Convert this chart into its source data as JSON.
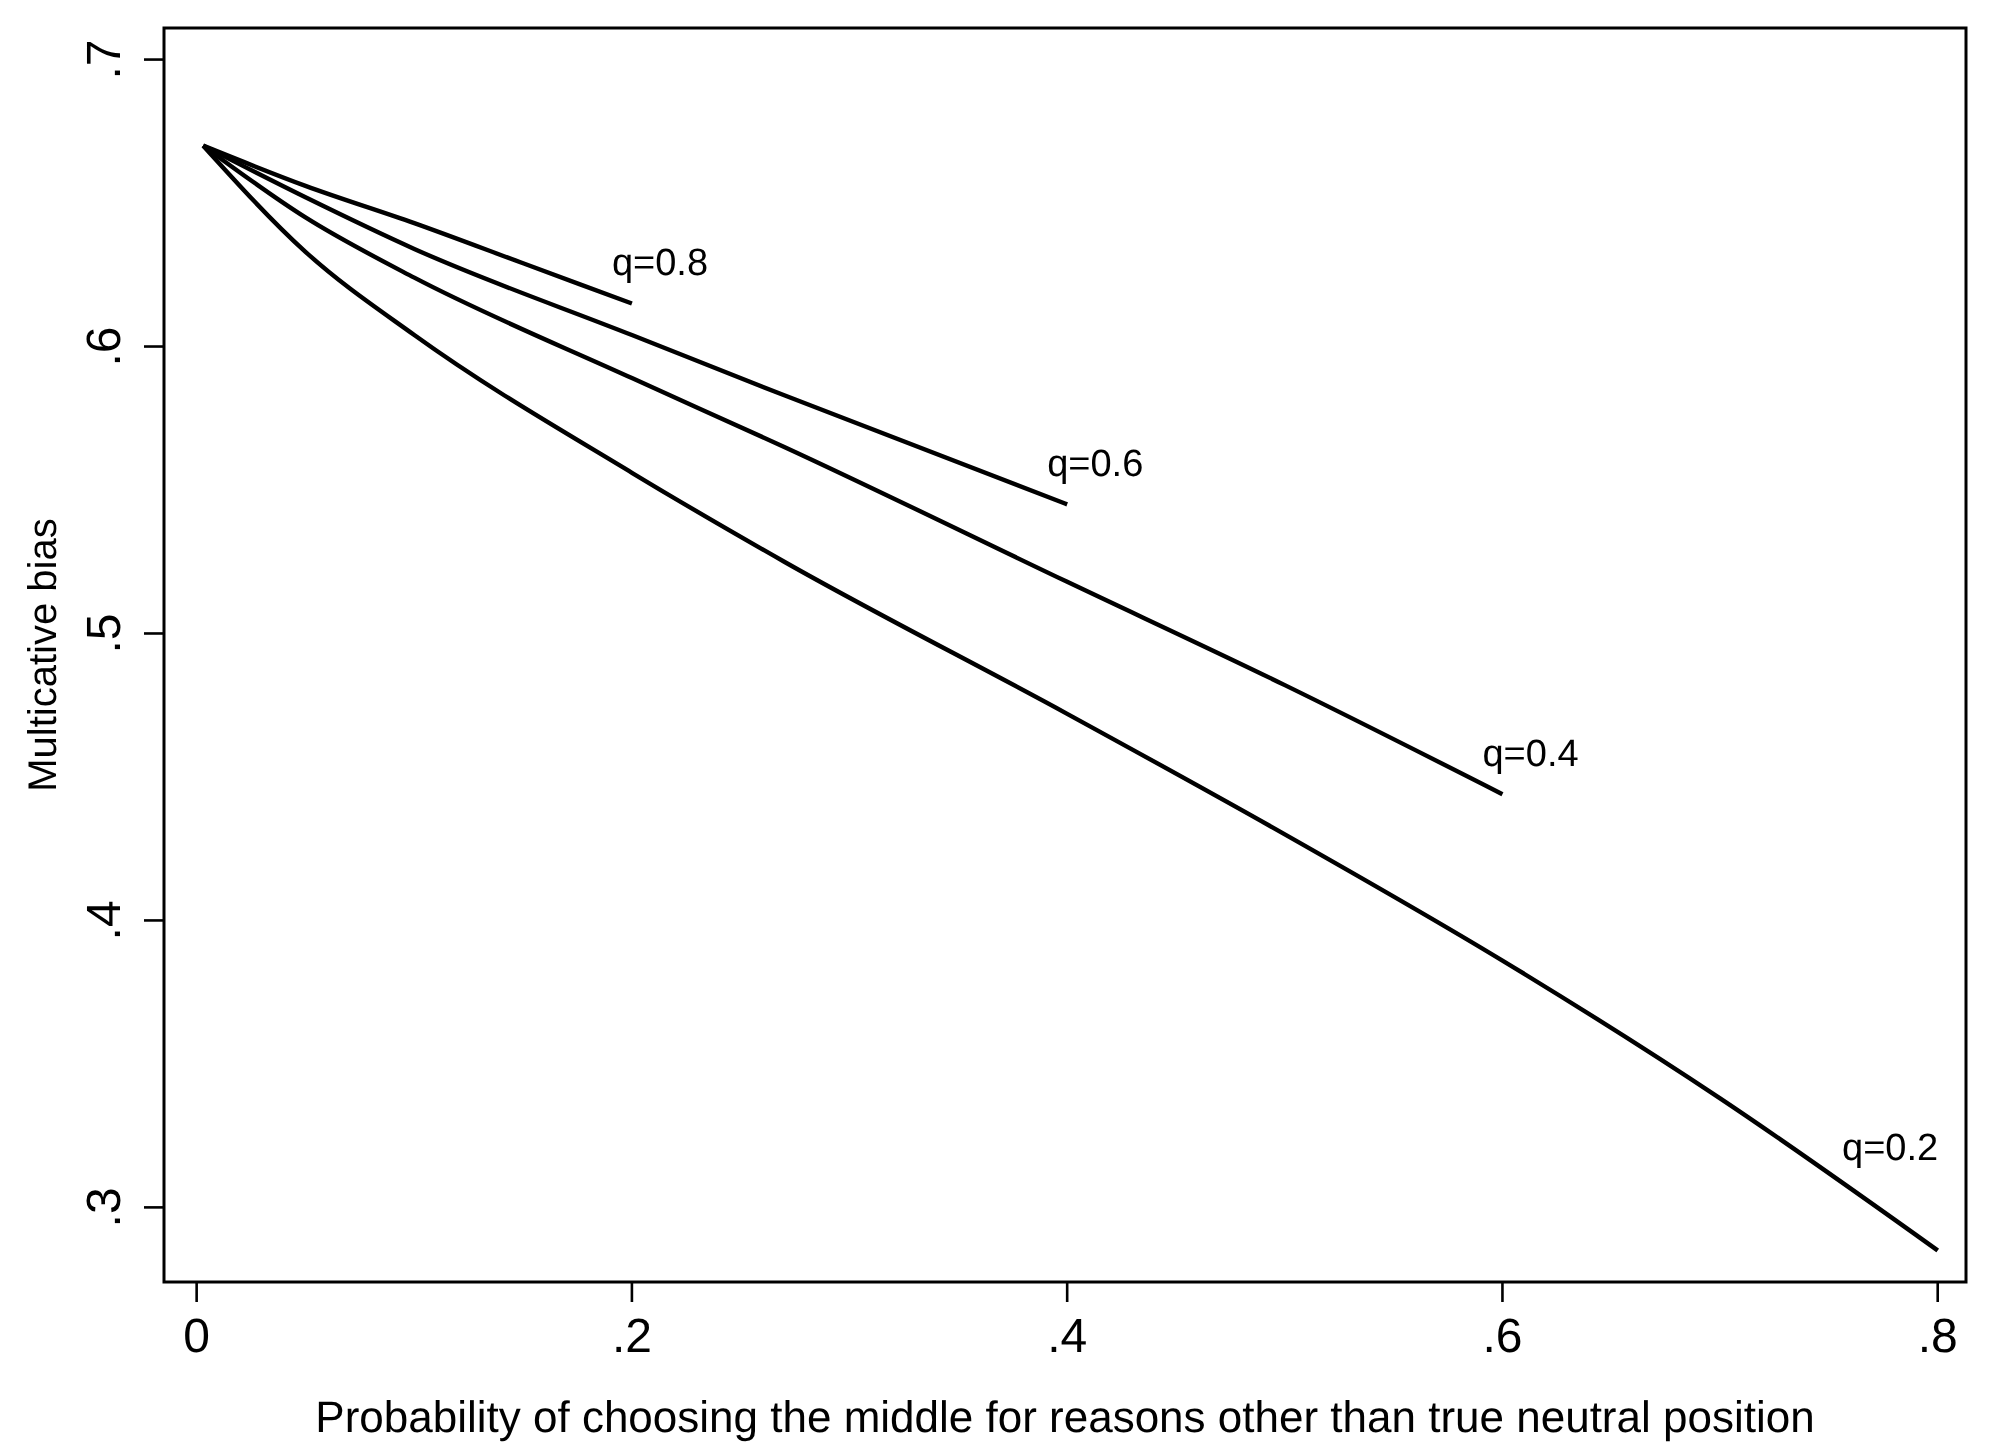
{
  "chart_data": {
    "type": "line",
    "xlabel": "Probability of choosing the middle for reasons other than true neutral position",
    "ylabel": "Multicative bias",
    "xlim": [
      -0.015,
      0.813
    ],
    "ylim": [
      0.274,
      0.711
    ],
    "xticks": [
      {
        "value": 0,
        "label": "0"
      },
      {
        "value": 0.2,
        "label": ".2"
      },
      {
        "value": 0.4,
        "label": ".4"
      },
      {
        "value": 0.6,
        "label": ".6"
      },
      {
        "value": 0.8,
        "label": ".8"
      }
    ],
    "yticks": [
      {
        "value": 0.3,
        "label": ".3"
      },
      {
        "value": 0.4,
        "label": ".4"
      },
      {
        "value": 0.5,
        "label": ".5"
      },
      {
        "value": 0.6,
        "label": ".6"
      },
      {
        "value": 0.7,
        "label": ".7"
      }
    ],
    "grid": false,
    "legend": false,
    "marker": "none",
    "line_style": "solid",
    "series": [
      {
        "name": "q=0.8",
        "color": "#000000",
        "x": [
          0.003,
          0.05,
          0.1,
          0.15,
          0.2
        ],
        "values": [
          0.67,
          0.656,
          0.643,
          0.629,
          0.615
        ]
      },
      {
        "name": "q=0.6",
        "color": "#000000",
        "x": [
          0.003,
          0.05,
          0.1,
          0.2,
          0.27,
          0.4
        ],
        "values": [
          0.67,
          0.652,
          0.634,
          0.604,
          0.583,
          0.545
        ]
      },
      {
        "name": "q=0.4",
        "color": "#000000",
        "x": [
          0.003,
          0.05,
          0.1,
          0.2,
          0.27,
          0.4,
          0.5,
          0.6
        ],
        "values": [
          0.67,
          0.645,
          0.624,
          0.589,
          0.565,
          0.518,
          0.482,
          0.444
        ]
      },
      {
        "name": "q=0.2",
        "color": "#000000",
        "x": [
          0.003,
          0.05,
          0.1,
          0.2,
          0.27,
          0.4,
          0.5,
          0.6,
          0.7,
          0.8
        ],
        "values": [
          0.67,
          0.633,
          0.604,
          0.556,
          0.525,
          0.472,
          0.43,
          0.386,
          0.338,
          0.285
        ]
      }
    ]
  }
}
